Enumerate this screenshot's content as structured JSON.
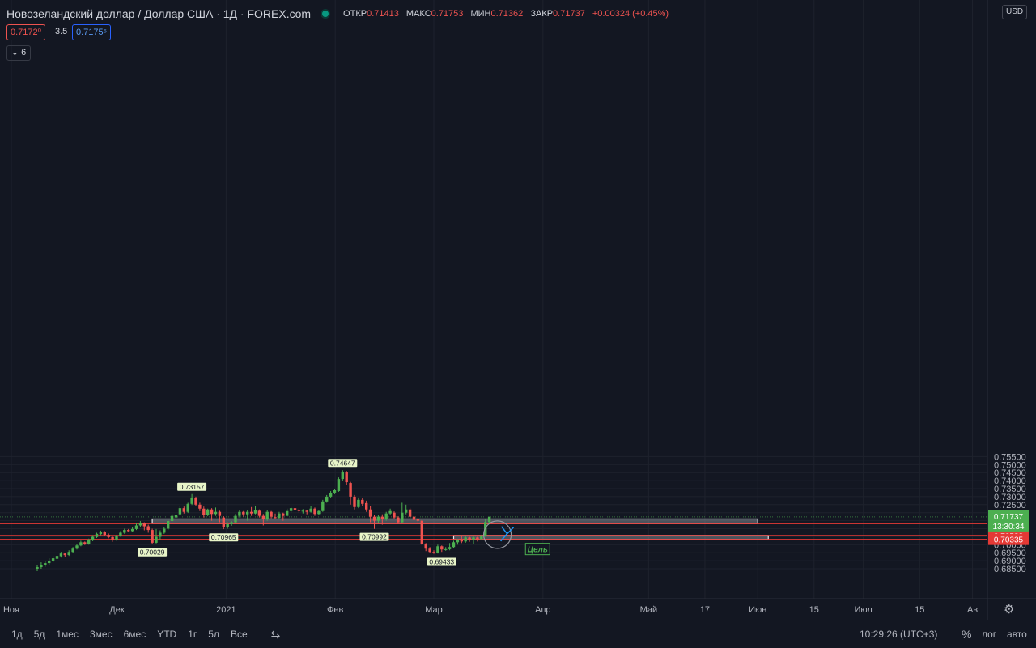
{
  "header": {
    "symbol_title": "Новозеландский доллар / Доллар США · 1Д · FOREX.com",
    "open_label": "ОТКР",
    "open_value": "0.71413",
    "high_label": "МАКС",
    "high_value": "0.71753",
    "low_label": "МИН",
    "low_value": "0.71362",
    "close_label": "ЗАКР",
    "close_value": "0.71737",
    "change": "+0.00324 (+0.45%)",
    "bid_price": "0.7172⁰",
    "spread": "3.5",
    "ask_price": "0.7175⁵",
    "indicators_count": "6",
    "chevron_glyph": "⌄"
  },
  "currency": "USD",
  "bottom": {
    "timeframes": [
      "1д",
      "5д",
      "1мес",
      "3мес",
      "6мес",
      "YTD",
      "1г",
      "5л",
      "Все"
    ],
    "compare_glyph": "⇆",
    "time": "10:29:26 (UTC+3)",
    "percent": "%",
    "log": "лог",
    "auto": "авто",
    "settings_glyph": "⚙"
  },
  "colors": {
    "background": "#131722",
    "up": "#4caf50",
    "down": "#ef5350",
    "grid": "#1e222d",
    "level_line": "#e53935",
    "zone_fill": "#c8ccd4",
    "arrow": "#2196f3",
    "target_text": "#4caf50"
  },
  "chart_data": {
    "type": "candlestick",
    "symbol": "NZD/USD",
    "timeframe": "1Д",
    "y_range": [
      0.6825,
      0.7565
    ],
    "y_ticks": [
      0.685,
      0.69,
      0.695,
      0.7,
      0.705,
      0.71,
      0.715,
      0.72,
      0.725,
      0.73,
      0.735,
      0.74,
      0.745,
      0.75,
      0.755
    ],
    "x_labels": [
      "Ноя",
      "Дек",
      "2021",
      "Фев",
      "Мар",
      "Апр",
      "Май",
      "17",
      "Июн",
      "15",
      "Июл",
      "15",
      "Ав"
    ],
    "x_label_days": [
      0,
      30,
      61,
      92,
      120,
      151,
      181,
      197,
      212,
      228,
      242,
      258,
      273
    ],
    "candles": [
      [
        0.686,
        0.685,
        0.6875,
        0.6835
      ],
      [
        0.6873,
        0.686,
        0.689,
        0.685
      ],
      [
        0.6885,
        0.6872,
        0.69,
        0.6862
      ],
      [
        0.69,
        0.6885,
        0.6915,
        0.6875
      ],
      [
        0.6915,
        0.6898,
        0.693,
        0.689
      ],
      [
        0.693,
        0.6912,
        0.694,
        0.6905
      ],
      [
        0.6945,
        0.6928,
        0.6955,
        0.692
      ],
      [
        0.6935,
        0.6945,
        0.695,
        0.6925
      ],
      [
        0.6955,
        0.6936,
        0.6965,
        0.693
      ],
      [
        0.6975,
        0.6955,
        0.6985,
        0.695
      ],
      [
        0.6995,
        0.6975,
        0.7005,
        0.697
      ],
      [
        0.7015,
        0.6995,
        0.7025,
        0.699
      ],
      [
        0.7005,
        0.7015,
        0.702,
        0.6998
      ],
      [
        0.703,
        0.7006,
        0.7038,
        0.7
      ],
      [
        0.705,
        0.7028,
        0.706,
        0.7022
      ],
      [
        0.7068,
        0.7048,
        0.7075,
        0.7042
      ],
      [
        0.708,
        0.7066,
        0.7088,
        0.706
      ],
      [
        0.7062,
        0.7078,
        0.7085,
        0.7055
      ],
      [
        0.7048,
        0.7062,
        0.707,
        0.704
      ],
      [
        0.703,
        0.7048,
        0.7055,
        0.7018
      ],
      [
        0.7055,
        0.703,
        0.7062,
        0.7025
      ],
      [
        0.7075,
        0.7055,
        0.7085,
        0.705
      ],
      [
        0.7092,
        0.7075,
        0.71,
        0.7068
      ],
      [
        0.7085,
        0.7092,
        0.7098,
        0.7078
      ],
      [
        0.7098,
        0.7085,
        0.7108,
        0.708
      ],
      [
        0.712,
        0.7098,
        0.7135,
        0.7092
      ],
      [
        0.7135,
        0.712,
        0.7148,
        0.711
      ],
      [
        0.7115,
        0.7135,
        0.714,
        0.709
      ],
      [
        0.7092,
        0.7115,
        0.7125,
        0.7075
      ],
      [
        0.7012,
        0.7092,
        0.71,
        0.7002
      ],
      [
        0.705,
        0.7012,
        0.7098,
        0.7008
      ],
      [
        0.7075,
        0.705,
        0.709,
        0.703
      ],
      [
        0.71,
        0.7075,
        0.711,
        0.7068
      ],
      [
        0.7148,
        0.71,
        0.7155,
        0.7092
      ],
      [
        0.718,
        0.7148,
        0.7192,
        0.714
      ],
      [
        0.7185,
        0.717,
        0.7198,
        0.716
      ],
      [
        0.7228,
        0.719,
        0.724,
        0.7182
      ],
      [
        0.7205,
        0.7228,
        0.7238,
        0.7195
      ],
      [
        0.7255,
        0.7205,
        0.7262,
        0.7198
      ],
      [
        0.7295,
        0.7255,
        0.7316,
        0.7248
      ],
      [
        0.725,
        0.7292,
        0.73,
        0.724
      ],
      [
        0.7225,
        0.725,
        0.7262,
        0.721
      ],
      [
        0.7185,
        0.7225,
        0.7238,
        0.717
      ],
      [
        0.722,
        0.7185,
        0.7225,
        0.7178
      ],
      [
        0.7192,
        0.722,
        0.7228,
        0.715
      ],
      [
        0.7205,
        0.7192,
        0.7232,
        0.718
      ],
      [
        0.718,
        0.7205,
        0.7212,
        0.714
      ],
      [
        0.711,
        0.717,
        0.7178,
        0.7097
      ],
      [
        0.7128,
        0.711,
        0.714,
        0.71
      ],
      [
        0.714,
        0.7128,
        0.7148,
        0.7118
      ],
      [
        0.718,
        0.714,
        0.7192,
        0.7132
      ],
      [
        0.7205,
        0.718,
        0.7215,
        0.717
      ],
      [
        0.719,
        0.7205,
        0.721,
        0.7175
      ],
      [
        0.7205,
        0.719,
        0.7215,
        0.715
      ],
      [
        0.7195,
        0.7205,
        0.7235,
        0.718
      ],
      [
        0.7215,
        0.7195,
        0.724,
        0.719
      ],
      [
        0.718,
        0.7212,
        0.722,
        0.717
      ],
      [
        0.716,
        0.718,
        0.7192,
        0.712
      ],
      [
        0.7205,
        0.716,
        0.7215,
        0.715
      ],
      [
        0.7175,
        0.7205,
        0.721,
        0.7165
      ],
      [
        0.7168,
        0.7172,
        0.7195,
        0.7158
      ],
      [
        0.7195,
        0.7168,
        0.7205,
        0.716
      ],
      [
        0.718,
        0.7195,
        0.72,
        0.715
      ],
      [
        0.721,
        0.718,
        0.7225,
        0.7175
      ],
      [
        0.7228,
        0.721,
        0.7235,
        0.72
      ],
      [
        0.7215,
        0.7228,
        0.7232,
        0.7195
      ],
      [
        0.721,
        0.7215,
        0.7225,
        0.72
      ],
      [
        0.7212,
        0.7208,
        0.7222,
        0.7195
      ],
      [
        0.7205,
        0.7212,
        0.7215,
        0.719
      ],
      [
        0.7225,
        0.7205,
        0.724,
        0.72
      ],
      [
        0.7192,
        0.7225,
        0.7232,
        0.718
      ],
      [
        0.721,
        0.7192,
        0.7215,
        0.7185
      ],
      [
        0.727,
        0.721,
        0.728,
        0.7205
      ],
      [
        0.73,
        0.727,
        0.731,
        0.7262
      ],
      [
        0.7325,
        0.73,
        0.7335,
        0.729
      ],
      [
        0.734,
        0.7325,
        0.7345,
        0.7315
      ],
      [
        0.741,
        0.7335,
        0.742,
        0.733
      ],
      [
        0.7455,
        0.741,
        0.7465,
        0.74
      ],
      [
        0.739,
        0.7455,
        0.746,
        0.7375
      ],
      [
        0.73,
        0.7385,
        0.7392,
        0.725
      ],
      [
        0.7235,
        0.73,
        0.731,
        0.722
      ],
      [
        0.728,
        0.7235,
        0.7295,
        0.7228
      ],
      [
        0.7255,
        0.728,
        0.729,
        0.724
      ],
      [
        0.722,
        0.726,
        0.7275,
        0.7205
      ],
      [
        0.7175,
        0.722,
        0.724,
        0.714
      ],
      [
        0.715,
        0.7175,
        0.7185,
        0.7099
      ],
      [
        0.7175,
        0.715,
        0.7185,
        0.7138
      ],
      [
        0.716,
        0.7175,
        0.719,
        0.7125
      ],
      [
        0.7195,
        0.716,
        0.7205,
        0.715
      ],
      [
        0.721,
        0.7195,
        0.7225,
        0.7185
      ],
      [
        0.717,
        0.72,
        0.7208,
        0.716
      ],
      [
        0.714,
        0.717,
        0.7178,
        0.7128
      ],
      [
        0.72,
        0.714,
        0.7262,
        0.7135
      ],
      [
        0.722,
        0.72,
        0.725,
        0.719
      ],
      [
        0.7175,
        0.722,
        0.723,
        0.7165
      ],
      [
        0.7155,
        0.7175,
        0.718,
        0.714
      ],
      [
        0.715,
        0.7158,
        0.7165,
        0.714
      ],
      [
        0.7005,
        0.715,
        0.7155,
        0.6998
      ],
      [
        0.6975,
        0.7005,
        0.701,
        0.696
      ],
      [
        0.6955,
        0.6975,
        0.6985,
        0.695
      ],
      [
        0.695,
        0.6955,
        0.6965,
        0.6943
      ],
      [
        0.699,
        0.695,
        0.7,
        0.6945
      ],
      [
        0.697,
        0.699,
        0.6995,
        0.6955
      ],
      [
        0.6972,
        0.6968,
        0.6985,
        0.6962
      ],
      [
        0.6985,
        0.6972,
        0.701,
        0.6965
      ],
      [
        0.7015,
        0.6985,
        0.7025,
        0.6978
      ],
      [
        0.703,
        0.7015,
        0.7035,
        0.7
      ],
      [
        0.702,
        0.703,
        0.7055,
        0.701
      ],
      [
        0.7045,
        0.702,
        0.7052,
        0.7012
      ],
      [
        0.703,
        0.7045,
        0.705,
        0.7018
      ],
      [
        0.7045,
        0.703,
        0.7052,
        0.7005
      ],
      [
        0.7032,
        0.7045,
        0.705,
        0.702
      ],
      [
        0.7055,
        0.7035,
        0.706,
        0.703
      ],
      [
        0.7141,
        0.7055,
        0.716,
        0.705
      ],
      [
        0.7174,
        0.7141,
        0.7175,
        0.7136
      ]
    ],
    "annotations": {
      "high_lows": [
        {
          "label": "0.73157",
          "candle": 39,
          "price": 0.73157,
          "pos": "above"
        },
        {
          "label": "0.74647",
          "candle": 77,
          "price": 0.74647,
          "pos": "above"
        },
        {
          "label": "0.70029",
          "candle": 29,
          "price": 0.70029,
          "pos": "below"
        },
        {
          "label": "0.70965",
          "candle": 47,
          "price": 0.70965,
          "pos": "below"
        },
        {
          "label": "0.70992",
          "candle": 85,
          "price": 0.70992,
          "pos": "below"
        },
        {
          "label": "0.69433",
          "candle": 102,
          "price": 0.69433,
          "pos": "below"
        }
      ],
      "levels": [
        {
          "price": 0.71608,
          "label": "0.71608"
        },
        {
          "price": 0.71311,
          "label": "0.71311"
        },
        {
          "price": 0.70582,
          "label": "0.70582"
        },
        {
          "price": 0.70335,
          "label": "0.70335"
        }
      ],
      "zones": [
        {
          "p1": 0.71608,
          "p2": 0.71311,
          "from_candle": 29,
          "to_day": 212
        },
        {
          "p1": 0.70582,
          "p2": 0.70335,
          "from_candle": 105,
          "to_day": 215
        }
      ],
      "target_label": "Цель",
      "last_price": {
        "value": "0.71737",
        "price": 0.71737,
        "countdown": "13:30:34"
      }
    }
  }
}
